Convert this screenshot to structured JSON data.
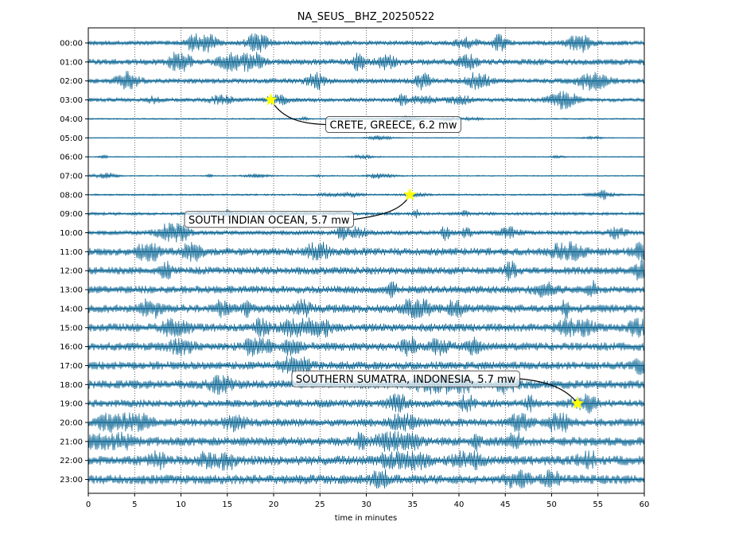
{
  "chart_data": {
    "type": "line",
    "title": "NA_SEUS__BHZ_20250522",
    "xlabel": "time in minutes",
    "ylabel": "",
    "xlim": [
      0,
      60
    ],
    "x_ticks": [
      0,
      5,
      10,
      15,
      20,
      25,
      30,
      35,
      40,
      45,
      50,
      55,
      60
    ],
    "grid": "vertical dotted lines every 5 minutes",
    "trace_color": "#005f8f",
    "rows": [
      {
        "label": "00:00",
        "amplitude": 0.35
      },
      {
        "label": "01:00",
        "amplitude": 0.45
      },
      {
        "label": "02:00",
        "amplitude": 0.38
      },
      {
        "label": "03:00",
        "amplitude": 0.28
      },
      {
        "label": "04:00",
        "amplitude": 0.1
      },
      {
        "label": "05:00",
        "amplitude": 0.06
      },
      {
        "label": "06:00",
        "amplitude": 0.07
      },
      {
        "label": "07:00",
        "amplitude": 0.08
      },
      {
        "label": "08:00",
        "amplitude": 0.12
      },
      {
        "label": "09:00",
        "amplitude": 0.22
      },
      {
        "label": "10:00",
        "amplitude": 0.35
      },
      {
        "label": "11:00",
        "amplitude": 0.55
      },
      {
        "label": "12:00",
        "amplitude": 0.55
      },
      {
        "label": "13:00",
        "amplitude": 0.55
      },
      {
        "label": "14:00",
        "amplitude": 0.6
      },
      {
        "label": "15:00",
        "amplitude": 0.6
      },
      {
        "label": "16:00",
        "amplitude": 0.6
      },
      {
        "label": "17:00",
        "amplitude": 0.58
      },
      {
        "label": "18:00",
        "amplitude": 0.62
      },
      {
        "label": "19:00",
        "amplitude": 0.55
      },
      {
        "label": "20:00",
        "amplitude": 0.58
      },
      {
        "label": "21:00",
        "amplitude": 0.65
      },
      {
        "label": "22:00",
        "amplitude": 0.68
      },
      {
        "label": "23:00",
        "amplitude": 0.68
      }
    ],
    "events": [
      {
        "label": "CRETE, GREECE, 6.2 mw",
        "row": 3,
        "minute": 19.7
      },
      {
        "label": "SOUTH INDIAN OCEAN, 5.7 mw",
        "row": 8,
        "minute": 34.7
      },
      {
        "label": "SOUTHERN SUMATRA, INDONESIA, 5.7 mw",
        "row": 19,
        "minute": 52.8
      }
    ],
    "marker_color": "#ffff00"
  }
}
